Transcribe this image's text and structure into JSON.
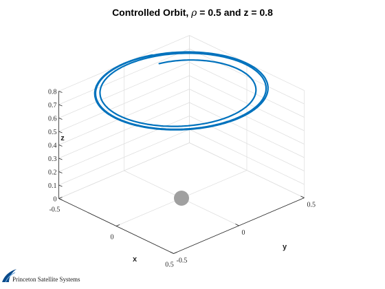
{
  "chart_data": {
    "type": "line",
    "title_prefix": "Controlled Orbit, ",
    "title_symbol": "ρ",
    "title_suffix": " = 0.5 and z = 0.8",
    "xlabel": "x",
    "ylabel": "y",
    "zlabel": "z",
    "xlim": [
      -0.5,
      0.5
    ],
    "ylim": [
      -0.5,
      0.5
    ],
    "zlim": [
      0,
      0.8
    ],
    "x_ticks": [
      -0.5,
      0,
      0.5
    ],
    "y_ticks": [
      -0.5,
      0,
      0.5
    ],
    "z_ticks": [
      0,
      0.1,
      0.2,
      0.3,
      0.4,
      0.5,
      0.6,
      0.7,
      0.8
    ],
    "x_tick_labels": [
      "-0.5",
      "0",
      "0.5"
    ],
    "y_tick_labels": [
      "-0.5",
      "0",
      "0.5"
    ],
    "z_tick_labels": [
      "0",
      "0.1",
      "0.2",
      "0.3",
      "0.4",
      "0.5",
      "0.6",
      "0.7",
      "0.8"
    ],
    "grid": true,
    "box": "open-3d",
    "series": [
      {
        "color": "#0072BD",
        "trajectory": "spiral converging to circle of radius 0.5 at z = 0.8",
        "start_radius": 0.38,
        "final_radius": 0.5,
        "z": 0.8,
        "turns": 3
      }
    ],
    "central_body": {
      "x": 0,
      "y": 0,
      "z": 0,
      "color": "#a0a0a0"
    }
  },
  "logo": {
    "text": "Princeton Satellite Systems"
  }
}
